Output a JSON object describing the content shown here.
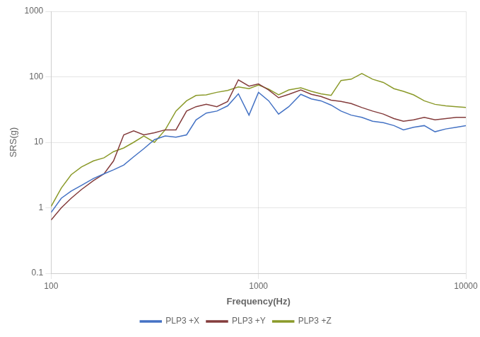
{
  "chart_data": {
    "type": "line",
    "xlabel": "Frequency(Hz)",
    "ylabel": "SRS(g)",
    "log": true,
    "grid": true,
    "legend": "bottom",
    "xlim": [
      100,
      10000
    ],
    "ylim": [
      0.1,
      1000
    ],
    "xticks": [
      100,
      1000,
      10000
    ],
    "yticks": [
      0.1,
      1,
      10,
      100,
      1000
    ],
    "x": [
      100,
      112,
      125,
      140,
      160,
      180,
      200,
      224,
      250,
      280,
      315,
      355,
      400,
      450,
      500,
      560,
      630,
      710,
      800,
      900,
      1000,
      1120,
      1250,
      1400,
      1600,
      1800,
      2000,
      2240,
      2500,
      2800,
      3150,
      3550,
      4000,
      4500,
      5000,
      5600,
      6300,
      7100,
      8000,
      9000,
      10000
    ],
    "series": [
      {
        "name": "PLP3 +X",
        "color": "#4472C4",
        "values": [
          0.85,
          1.4,
          1.8,
          2.2,
          2.8,
          3.3,
          3.8,
          4.5,
          6.0,
          8.0,
          11.0,
          12.5,
          12.0,
          13.0,
          22.0,
          28.0,
          30.0,
          36.0,
          55.0,
          26.0,
          58.0,
          43.0,
          27.0,
          35.0,
          54.0,
          46.0,
          43.0,
          37.0,
          30.0,
          26.0,
          24.0,
          21.0,
          20.0,
          18.0,
          15.5,
          17.0,
          18.0,
          14.5,
          16.0,
          17.0,
          18.0
        ]
      },
      {
        "name": "PLP3 +Y",
        "color": "#843C3C",
        "values": [
          0.65,
          1.0,
          1.4,
          1.9,
          2.6,
          3.3,
          5.2,
          13.0,
          15.0,
          13.0,
          14.0,
          15.5,
          15.5,
          30.0,
          35.0,
          38.0,
          35.0,
          42.0,
          90.0,
          72.0,
          78.0,
          63.0,
          48.0,
          54.0,
          63.0,
          54.0,
          50.0,
          44.0,
          42.0,
          39.0,
          34.0,
          30.0,
          27.0,
          23.0,
          21.0,
          22.0,
          24.0,
          22.0,
          23.0,
          24.0,
          24.0
        ]
      },
      {
        "name": "PLP3 +Z",
        "color": "#8B9A2A",
        "values": [
          1.05,
          2.0,
          3.2,
          4.2,
          5.2,
          5.8,
          7.2,
          8.2,
          10.0,
          12.5,
          10.0,
          15.5,
          30.0,
          43.0,
          52.0,
          53.0,
          58.0,
          62.0,
          70.0,
          66.0,
          75.0,
          65.0,
          53.0,
          63.0,
          68.0,
          60.0,
          55.0,
          52.0,
          88.0,
          92.0,
          112.0,
          92.0,
          82.0,
          66.0,
          60.0,
          53.0,
          43.0,
          38.0,
          36.0,
          35.0,
          34.0
        ]
      }
    ]
  }
}
